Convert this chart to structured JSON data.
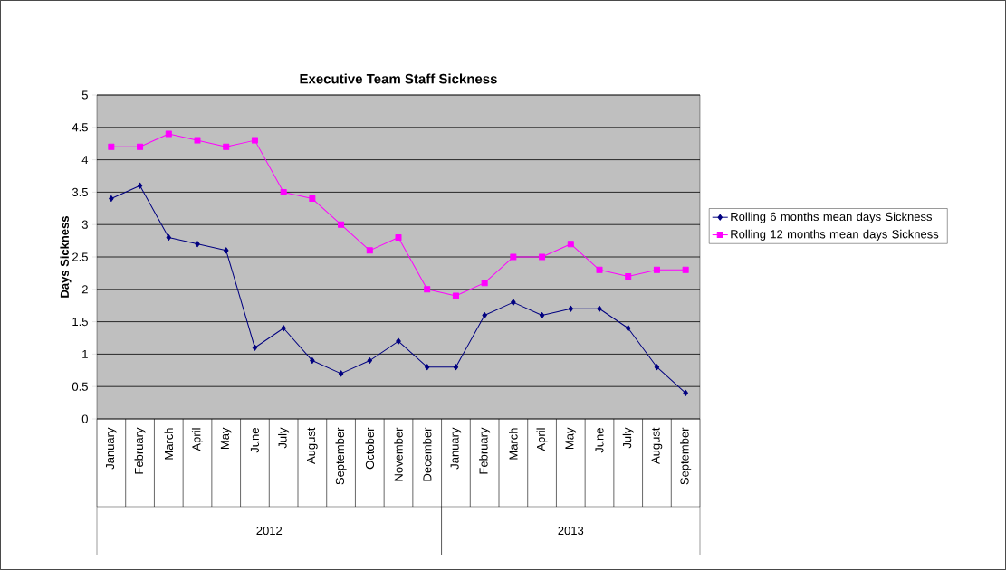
{
  "chart_data": {
    "type": "line",
    "title": "Executive Team Staff Sickness",
    "ylabel": "Days Sickness",
    "x": [
      "2012-01",
      "2012-02",
      "2012-03",
      "2012-04",
      "2012-05",
      "2012-06",
      "2012-07",
      "2012-08",
      "2012-09",
      "2012-10",
      "2012-11",
      "2012-12",
      "2013-01",
      "2013-02",
      "2013-03",
      "2013-04",
      "2013-05",
      "2013-06",
      "2013-07",
      "2013-08",
      "2013-09"
    ],
    "xlim": [
      "2011-12-16",
      "2013-09-16"
    ],
    "xticks": [
      {
        "value": "2012-01",
        "label": "January"
      },
      {
        "value": "2012-02",
        "label": "February"
      },
      {
        "value": "2012-03",
        "label": "March"
      },
      {
        "value": "2012-04",
        "label": "April"
      },
      {
        "value": "2012-05",
        "label": "May"
      },
      {
        "value": "2012-06",
        "label": "June"
      },
      {
        "value": "2012-07",
        "label": "July"
      },
      {
        "value": "2012-08",
        "label": "August"
      },
      {
        "value": "2012-09",
        "label": "September"
      },
      {
        "value": "2012-10",
        "label": "October"
      },
      {
        "value": "2012-11",
        "label": "November"
      },
      {
        "value": "2012-12",
        "label": "December"
      },
      {
        "value": "2013-01",
        "label": "January"
      },
      {
        "value": "2013-02",
        "label": "February"
      },
      {
        "value": "2013-03",
        "label": "March"
      },
      {
        "value": "2013-04",
        "label": "April"
      },
      {
        "value": "2013-05",
        "label": "May"
      },
      {
        "value": "2013-06",
        "label": "June"
      },
      {
        "value": "2013-07",
        "label": "July"
      },
      {
        "value": "2013-08",
        "label": "August"
      },
      {
        "value": "2013-09",
        "label": "September"
      }
    ],
    "ylim": [
      0,
      5
    ],
    "yticks": [
      0,
      0.5,
      1,
      1.5,
      2,
      2.5,
      3,
      3.5,
      4,
      4.5,
      5
    ],
    "annotations": [
      "2012",
      "2013"
    ],
    "grid": "y",
    "legend": "right",
    "line_style": "solid",
    "series": [
      {
        "name": "Rolling 6 months mean days Sickness",
        "color": "#000080",
        "marker": "diamond",
        "values": [
          3.4,
          3.6,
          2.8,
          2.7,
          2.6,
          1.1,
          1.4,
          0.9,
          0.7,
          0.9,
          1.2,
          0.8,
          0.8,
          1.6,
          1.8,
          1.6,
          1.7,
          1.7,
          1.4,
          0.8,
          0.4
        ]
      },
      {
        "name": "Rolling 12 months mean days Sickness",
        "color": "#ff00ff",
        "marker": "square",
        "values": [
          4.2,
          4.2,
          4.4,
          4.3,
          4.2,
          4.3,
          3.5,
          3.4,
          3.0,
          2.6,
          2.8,
          2.0,
          1.9,
          2.1,
          2.5,
          2.5,
          2.7,
          2.3,
          2.2,
          2.3,
          2.3
        ]
      }
    ]
  }
}
